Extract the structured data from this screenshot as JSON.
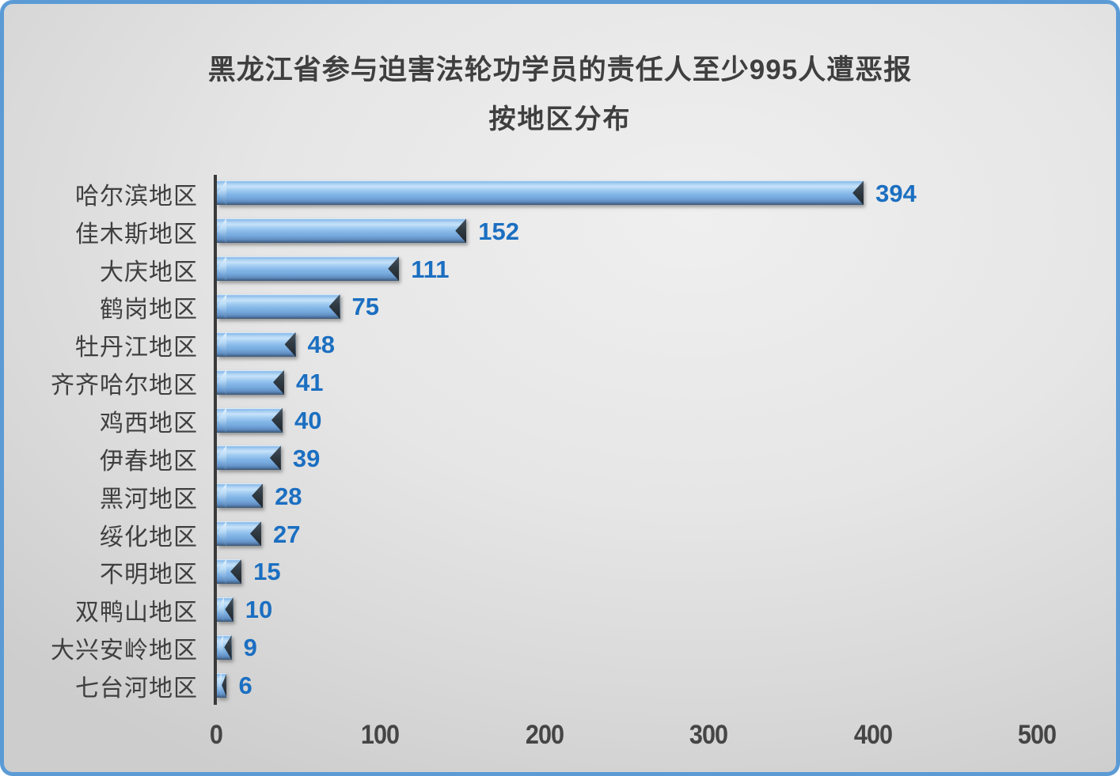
{
  "window": {
    "border_color": "#5B9BD5",
    "background_center": "#EFEFEF",
    "background_edge": "#CDCDCD"
  },
  "chart_data": {
    "type": "bar",
    "orientation": "horizontal",
    "title": "黑龙江省参与迫害法轮功学员的责任人至少995人遭恶报",
    "subtitle": "按地区分布",
    "categories": [
      "哈尔滨地区",
      "佳木斯地区",
      "大庆地区",
      "鹤岗地区",
      "牡丹江地区",
      "齐齐哈尔地区",
      "鸡西地区",
      "伊春地区",
      "黑河地区",
      "绥化地区",
      "不明地区",
      "双鸭山地区",
      "大兴安岭地区",
      "七台河地区"
    ],
    "values": [
      394,
      152,
      111,
      75,
      48,
      41,
      40,
      39,
      28,
      27,
      15,
      10,
      9,
      6
    ],
    "xlabel": "",
    "ylabel": "",
    "xlim": [
      0,
      500
    ],
    "x_ticks": [
      "0",
      "100",
      "200",
      "300",
      "400",
      "500"
    ],
    "x_tick_values": [
      0,
      100,
      200,
      300,
      400,
      500
    ],
    "grid": false,
    "legend": "none",
    "data_labels": true,
    "bar_color_light": "#C6E2F9",
    "bar_color_mid": "#83B5E7",
    "bar_color_dark": "#3A536F",
    "value_label_color": "#1B6FC1",
    "text_color": "#3F3F3F",
    "axis_line_color": "#3A3A3A"
  }
}
